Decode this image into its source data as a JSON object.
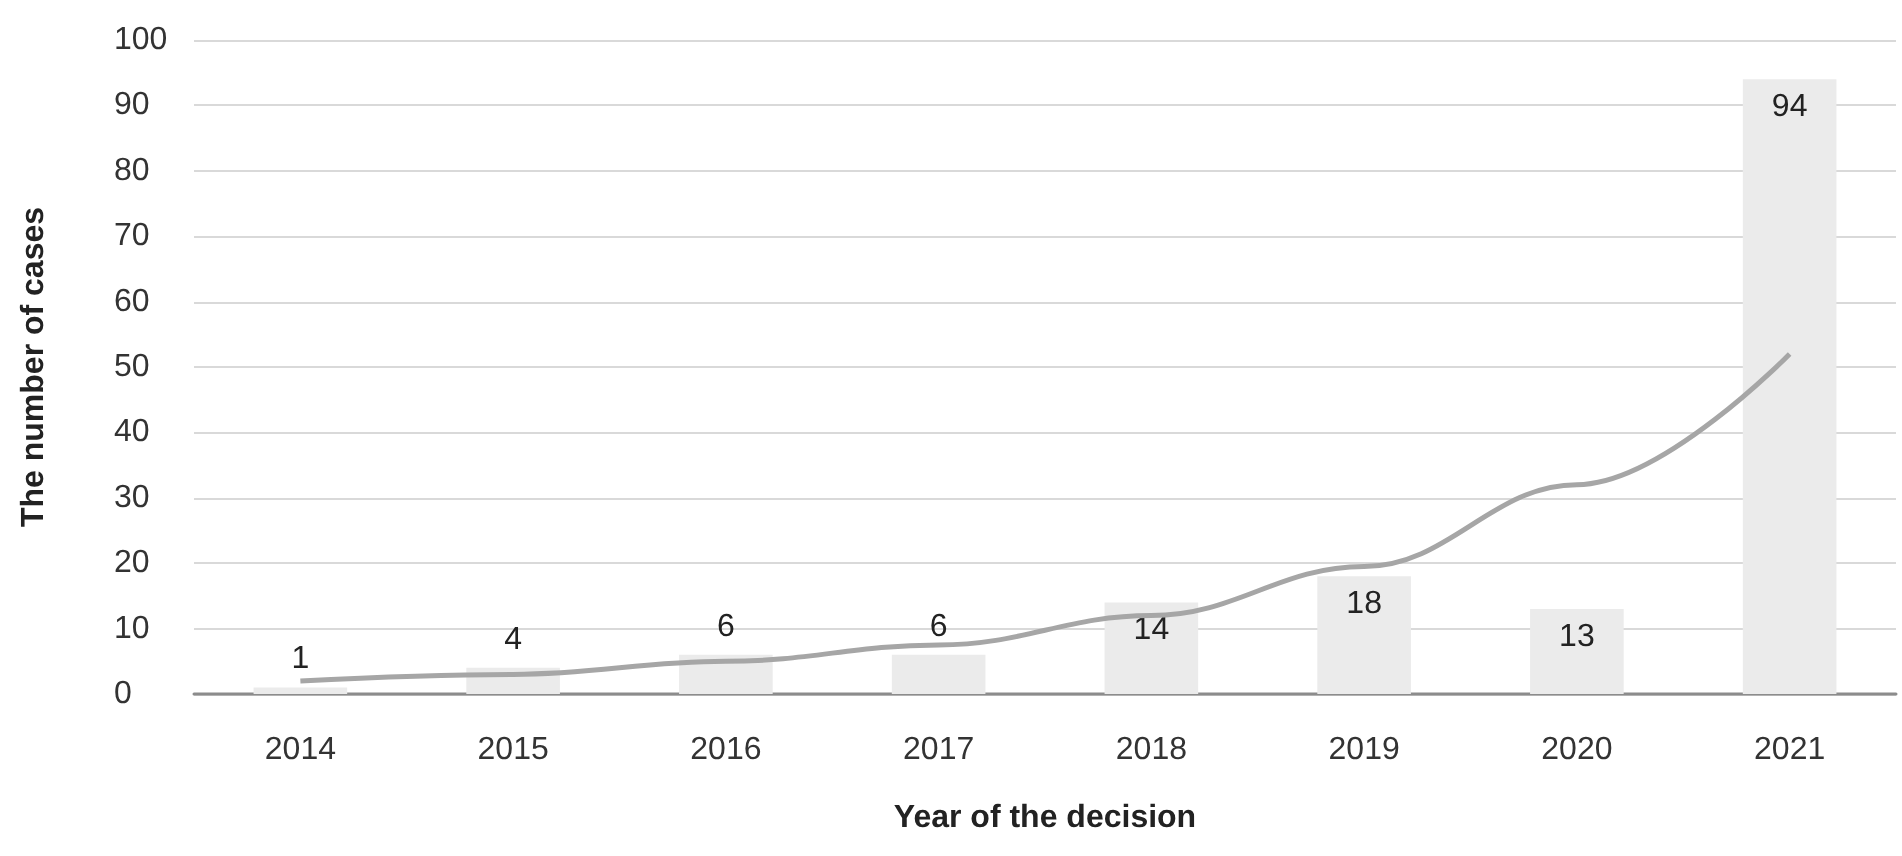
{
  "chart_data": {
    "type": "bar",
    "xlabel": "Year of the decision",
    "ylabel": "The number of cases",
    "categories": [
      "2014",
      "2015",
      "2016",
      "2017",
      "2018",
      "2019",
      "2020",
      "2021"
    ],
    "series": [
      {
        "color": "#ebebeb",
        "values": [
          1,
          4,
          6,
          6,
          14,
          18,
          13,
          94
        ],
        "value_labels": [
          "1",
          "4",
          "6",
          "6",
          "14",
          "18",
          "13",
          "94"
        ]
      },
      {
        "type": "line",
        "color": "#a6a6a6",
        "values": [
          2,
          3,
          5,
          7.5,
          12,
          19.5,
          32,
          52
        ],
        "marker": "none"
      }
    ],
    "ylim": [
      0,
      100
    ],
    "yticks": [
      0,
      10,
      20,
      30,
      40,
      50,
      60,
      70,
      80,
      90,
      100
    ],
    "grid": "y"
  }
}
